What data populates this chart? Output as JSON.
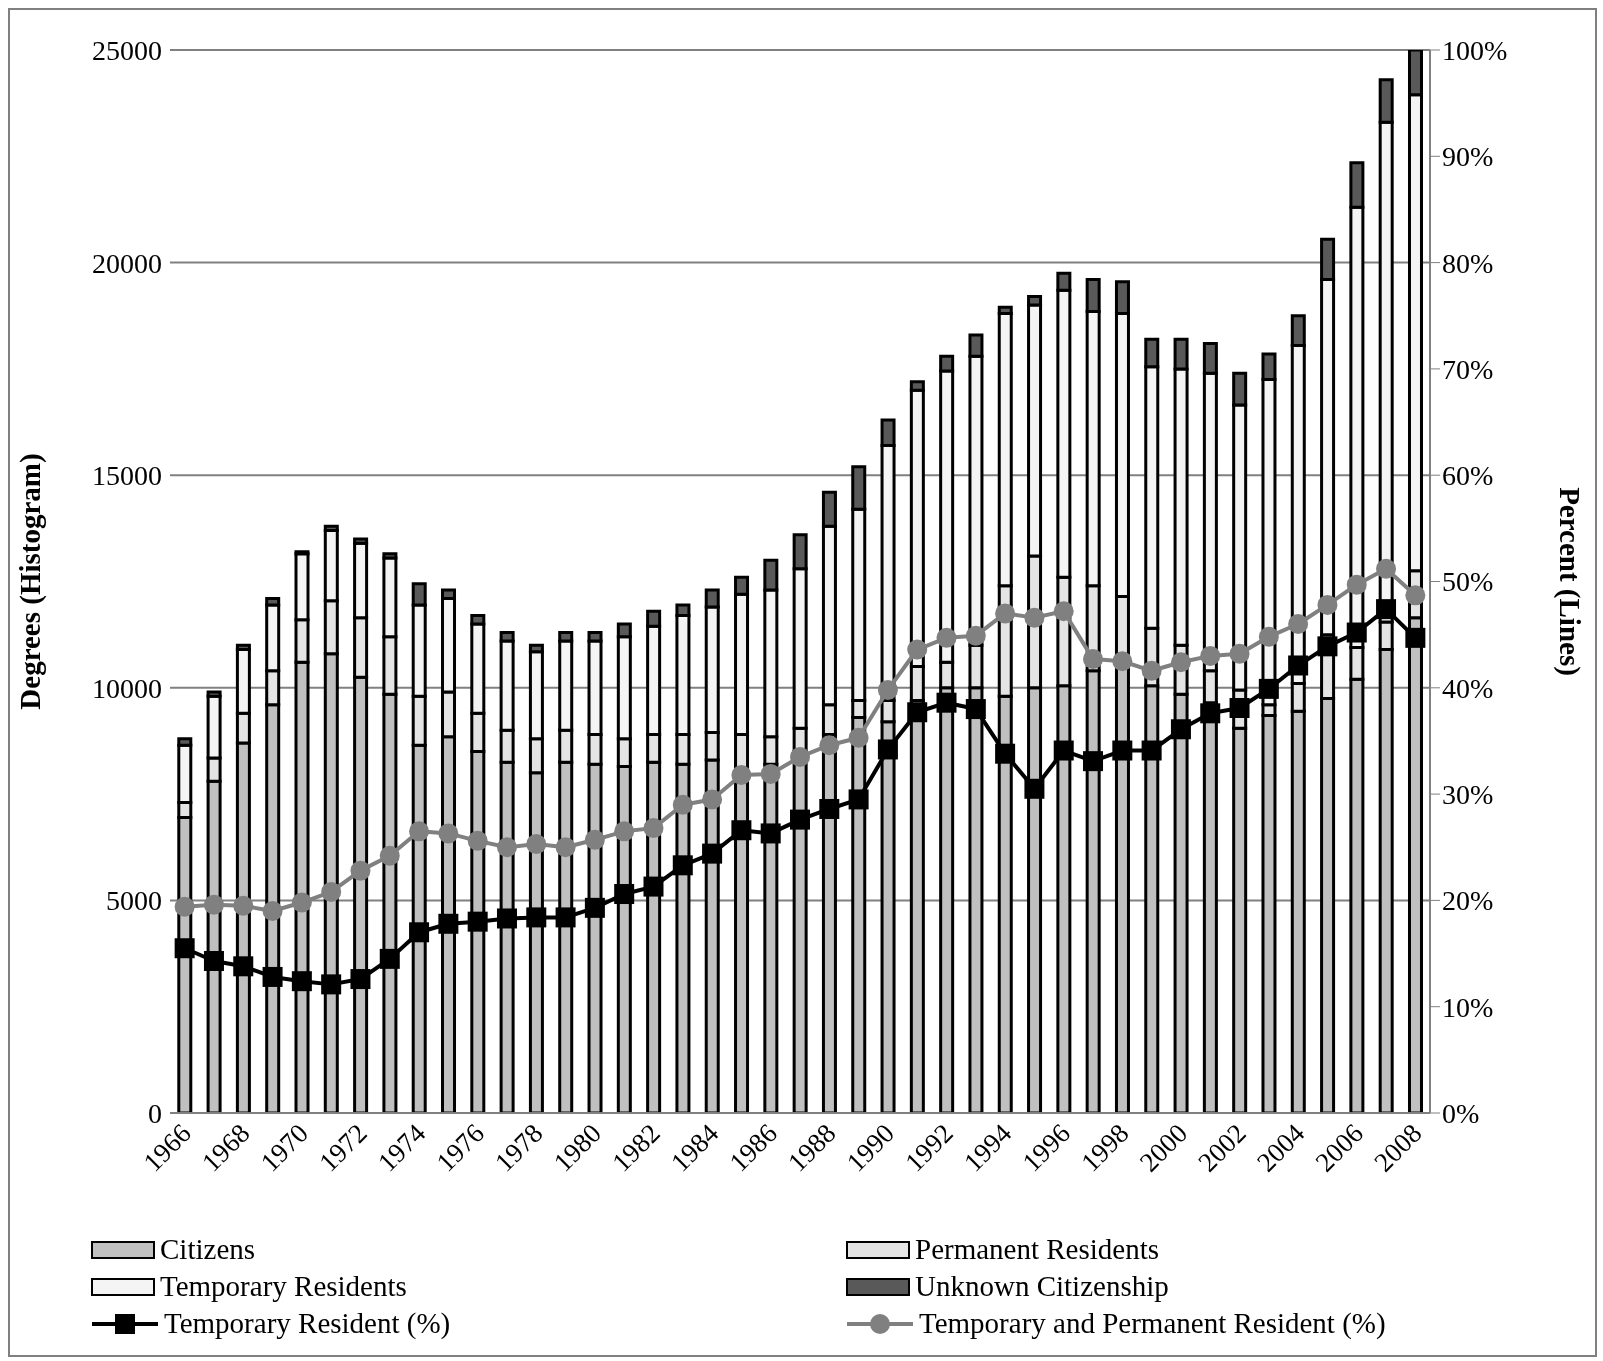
{
  "chart_data": {
    "type": "bar",
    "stacked": true,
    "ylabel": "Degrees (Histogram)",
    "y2label": "Percent (Lines)",
    "categories": [
      "1966",
      null,
      "1968",
      null,
      "1970",
      null,
      "1972",
      null,
      "1974",
      null,
      "1976",
      null,
      "1978",
      null,
      "1980",
      null,
      "1982",
      null,
      "1984",
      null,
      "1986",
      null,
      "1988",
      null,
      "1990",
      null,
      "1992",
      null,
      "1994",
      null,
      "1996",
      null,
      "1998",
      null,
      "2000",
      null,
      "2002",
      null,
      "2004",
      null,
      "2006",
      null,
      "2008"
    ],
    "series": [
      {
        "name": "Citizens",
        "color": "#c0c0c0",
        "values": [
          6950,
          7800,
          8700,
          9600,
          10600,
          10800,
          10250,
          9850,
          8650,
          8850,
          8500,
          8250,
          8000,
          8250,
          8200,
          8150,
          8250,
          8200,
          8300,
          8100,
          8200,
          8500,
          8900,
          9300,
          9200,
          9700,
          10000,
          10000,
          9800,
          10000,
          10050,
          10400,
          10500,
          10050,
          9850,
          9650,
          9050,
          9350,
          9450,
          9750,
          10200,
          10900,
          11650
        ]
      },
      {
        "name": "Permanent Residents",
        "color": "#e4e4e4",
        "values": [
          350,
          550,
          700,
          800,
          1000,
          1250,
          1400,
          1350,
          1150,
          1050,
          900,
          750,
          800,
          750,
          700,
          650,
          650,
          700,
          650,
          800,
          650,
          550,
          700,
          400,
          500,
          800,
          600,
          1000,
          2600,
          3100,
          2550,
          2000,
          1650,
          1350,
          1150,
          750,
          900,
          250,
          650,
          1500,
          750,
          650,
          1100
        ]
      },
      {
        "name": "Temporary Residents",
        "color": "#f4f4f4",
        "values": [
          1350,
          1450,
          1500,
          1550,
          1550,
          1650,
          1750,
          1850,
          2150,
          2200,
          2100,
          2100,
          2050,
          2100,
          2200,
          2400,
          2550,
          2800,
          2950,
          3300,
          3450,
          3750,
          4200,
          4500,
          6000,
          6500,
          6850,
          6800,
          6400,
          5900,
          6750,
          6450,
          6650,
          6150,
          6500,
          7000,
          6700,
          7650,
          7950,
          8350,
          10350,
          11750,
          11200
        ]
      },
      {
        "name": "Unknown Citizenship",
        "color": "#595959",
        "values": [
          150,
          100,
          100,
          150,
          50,
          100,
          100,
          100,
          500,
          200,
          200,
          200,
          150,
          200,
          200,
          300,
          350,
          250,
          400,
          400,
          700,
          800,
          800,
          1000,
          600,
          200,
          350,
          500,
          150,
          200,
          400,
          750,
          750,
          650,
          700,
          700,
          750,
          600,
          700,
          950,
          1050,
          1000,
          1050
        ]
      },
      {
        "name": "Temporary Resident (%)",
        "type": "line",
        "axis": "y2",
        "marker": "square",
        "color": "#000000",
        "values": [
          15.5,
          14.3,
          13.8,
          12.8,
          12.4,
          12.1,
          12.6,
          14.5,
          17.0,
          17.8,
          18.0,
          18.3,
          18.4,
          18.4,
          19.3,
          20.6,
          21.3,
          23.3,
          24.4,
          26.6,
          26.3,
          27.6,
          28.6,
          29.5,
          34.2,
          37.7,
          38.6,
          38.0,
          33.8,
          30.5,
          34.1,
          33.1,
          34.1,
          34.1,
          36.1,
          37.6,
          38.1,
          39.9,
          42.1,
          43.9,
          45.2,
          47.4,
          44.7
        ]
      },
      {
        "name": "Temporary and Permanent Resident (%)",
        "type": "line",
        "axis": "y2",
        "marker": "circle",
        "color": "#808080",
        "values": [
          19.4,
          19.6,
          19.5,
          19.0,
          19.8,
          20.8,
          22.8,
          24.2,
          26.5,
          26.3,
          25.6,
          25.0,
          25.3,
          25.0,
          25.7,
          26.5,
          26.8,
          29.0,
          29.5,
          31.8,
          31.9,
          33.5,
          34.6,
          35.3,
          39.8,
          43.6,
          44.7,
          44.9,
          47.0,
          46.6,
          47.2,
          42.7,
          42.5,
          41.6,
          42.4,
          43.0,
          43.2,
          44.8,
          46.0,
          47.8,
          49.7,
          51.2,
          48.7
        ]
      }
    ],
    "ylim": [
      0,
      25000
    ],
    "yticks": [
      0,
      5000,
      10000,
      15000,
      20000,
      25000
    ],
    "y2lim": [
      0,
      100
    ],
    "y2ticks": [
      {
        "value": 0,
        "label": "0%"
      },
      {
        "value": 10,
        "label": "10%"
      },
      {
        "value": 20,
        "label": "20%"
      },
      {
        "value": 30,
        "label": "30%"
      },
      {
        "value": 40,
        "label": "40%"
      },
      {
        "value": 50,
        "label": "50%"
      },
      {
        "value": 60,
        "label": "60%"
      },
      {
        "value": 70,
        "label": "70%"
      },
      {
        "value": 80,
        "label": "80%"
      },
      {
        "value": 90,
        "label": "90%"
      },
      {
        "value": 100,
        "label": "100%"
      }
    ],
    "grid": "y",
    "legend": "bottom"
  }
}
